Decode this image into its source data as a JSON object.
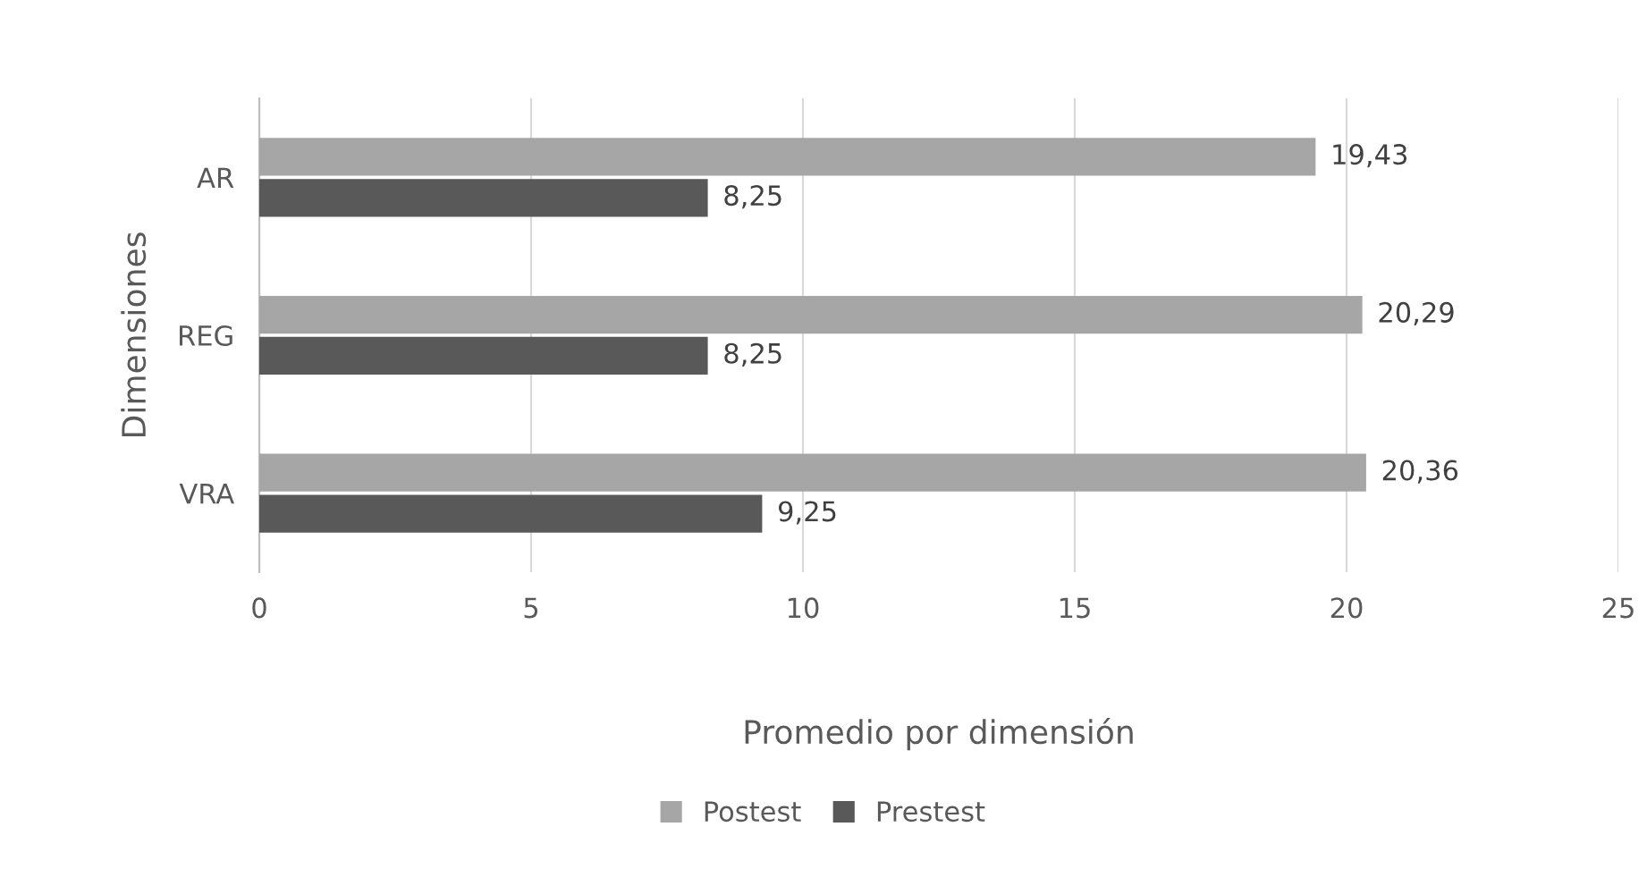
{
  "chart_data": {
    "type": "bar",
    "orientation": "horizontal",
    "xlabel": "Promedio por dimensión",
    "ylabel": "Dimensiones",
    "categories": [
      "AR",
      "REG",
      "VRA"
    ],
    "series": [
      {
        "name": "Postest",
        "color": "#a6a6a6",
        "values": [
          19.43,
          20.29,
          20.36
        ],
        "value_labels": [
          "19,43",
          "20,29",
          "20,36"
        ]
      },
      {
        "name": "Prestest",
        "color": "#595959",
        "values": [
          8.25,
          8.25,
          9.25
        ],
        "value_labels": [
          "8,25",
          "8,25",
          "9,25"
        ]
      }
    ],
    "xlim": [
      0,
      25
    ],
    "xticks": [
      0,
      5,
      10,
      15,
      20,
      25
    ],
    "grid": "x",
    "legend": "bottom"
  }
}
